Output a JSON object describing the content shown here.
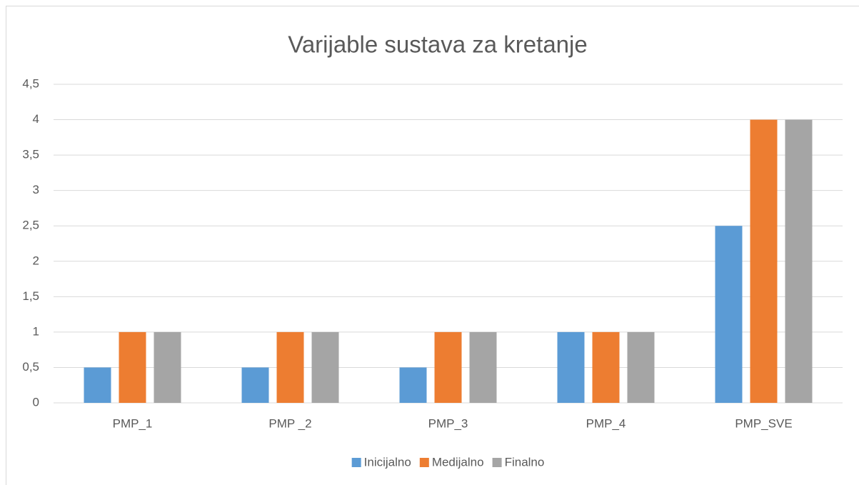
{
  "chart_data": {
    "type": "bar",
    "title": "Varijable sustava za kretanje",
    "categories": [
      "PMP_1",
      "PMP _2",
      "PMP_3",
      "PMP_4",
      "PMP_SVE"
    ],
    "series": [
      {
        "name": "Inicijalno",
        "color": "#5b9bd5",
        "values": [
          0.5,
          0.5,
          0.5,
          1,
          2.5
        ]
      },
      {
        "name": "Medijalno",
        "color": "#ed7d31",
        "values": [
          1,
          1,
          1,
          1,
          4
        ]
      },
      {
        "name": "Finalno",
        "color": "#a5a5a5",
        "values": [
          1,
          1,
          1,
          1,
          4
        ]
      }
    ],
    "ylim": [
      0,
      4.5
    ],
    "yticks": [
      0,
      {
        "value": 0.5,
        "label": "0,5"
      },
      1,
      {
        "value": 1.5,
        "label": "1,5"
      },
      2,
      {
        "value": 2.5,
        "label": "2,5"
      },
      3,
      {
        "value": 3.5,
        "label": "3,5"
      },
      4,
      {
        "value": 4.5,
        "label": "4,5"
      }
    ],
    "grid": true,
    "legend": "bottom"
  }
}
